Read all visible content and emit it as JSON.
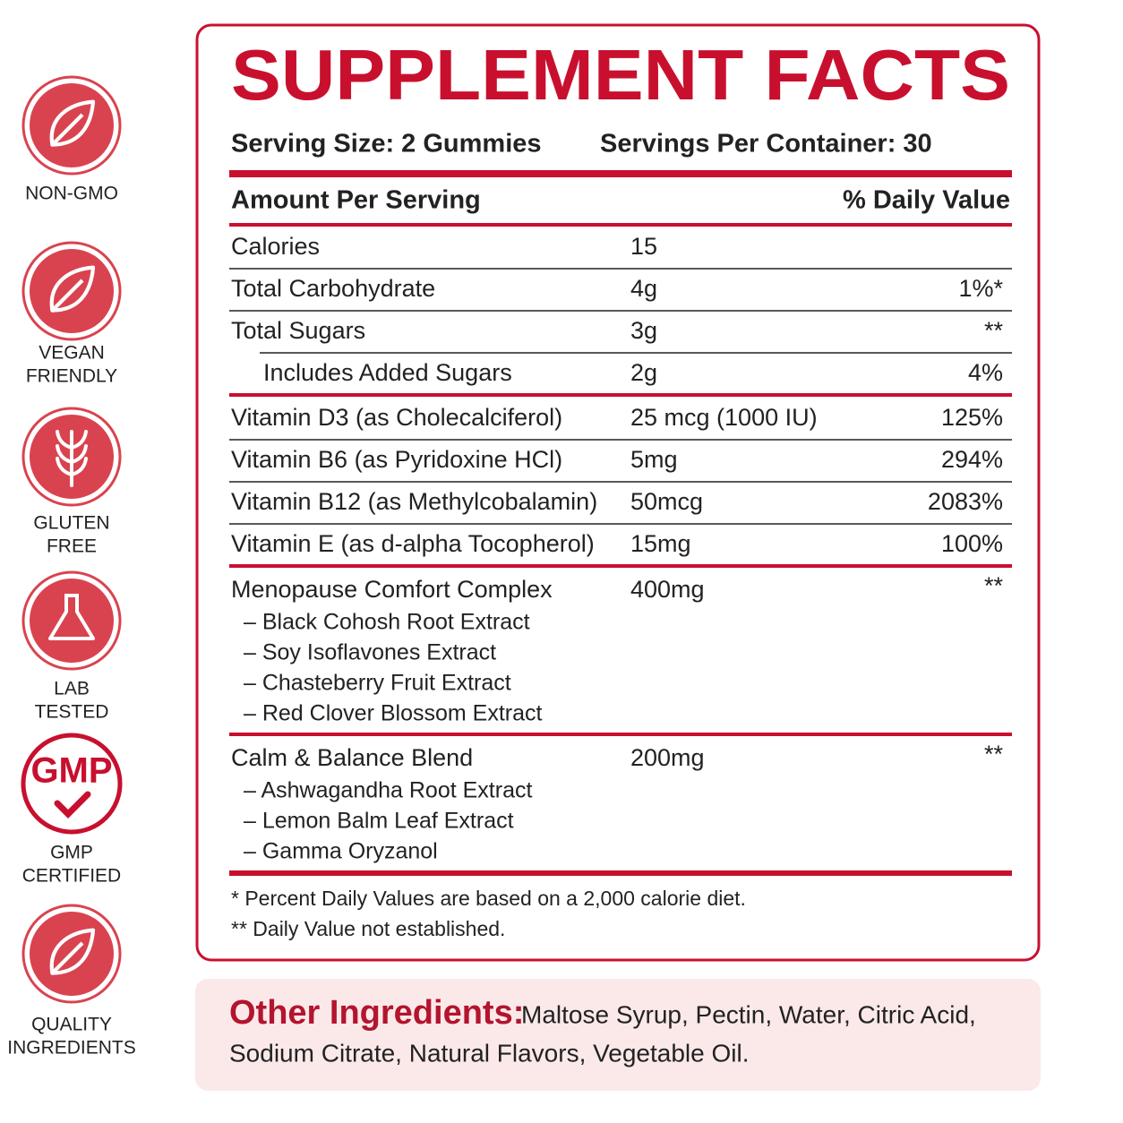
{
  "badges": [
    {
      "lines": [
        "NON-GMO"
      ]
    },
    {
      "lines": [
        "VEGAN",
        "FRIENDLY"
      ]
    },
    {
      "lines": [
        "GLUTEN",
        "FREE"
      ]
    },
    {
      "lines": [
        "LAB",
        "TESTED"
      ]
    },
    {
      "icon_text": "GMP",
      "lines": [
        "GMP",
        "CERTIFIED"
      ]
    },
    {
      "lines": [
        "QUALITY",
        "INGREDIENTS"
      ]
    }
  ],
  "facts": {
    "title": "SUPPLEMENT FACTS",
    "serving_size": "Serving Size: 2 Gummies",
    "servings_per_container": "Servings Per Container: 30",
    "header": {
      "amount": "Amount Per Serving",
      "dv": "% Daily Value"
    },
    "sections": [
      [
        {
          "name": "Calories",
          "amount": "15"
        },
        {
          "name": "Total Carbohydrate",
          "amount": "4g",
          "dv": "1%*"
        },
        {
          "name": "Total Sugars",
          "amount": "3g",
          "dv": "**"
        },
        {
          "name": "Includes Added Sugars",
          "amount": "2g",
          "dv": "4%",
          "indent": true
        }
      ],
      [
        {
          "name": "Vitamin D3 (as Cholecalciferol)",
          "amount": "25 mcg (1000 IU)",
          "dv": "125%"
        },
        {
          "name": "Vitamin B6 (as Pyridoxine HCl)",
          "amount": "5mg",
          "dv": "294%"
        },
        {
          "name": "Vitamin B12 (as Methylcobalamin)",
          "amount": "50mcg",
          "dv": "2083%"
        },
        {
          "name": "Vitamin E (as d-alpha Tocopherol)",
          "amount": "15mg",
          "dv": "100%"
        }
      ],
      [
        {
          "name": "Menopause Comfort Complex",
          "amount": "400mg",
          "dv": "**",
          "ingredients": [
            "– Black Cohosh Root Extract",
            "– Soy Isoflavones Extract",
            "– Chasteberry Fruit Extract",
            "– Red Clover Blossom Extract"
          ]
        }
      ],
      [
        {
          "name": "Calm & Balance Blend",
          "amount": "200mg",
          "dv": "**",
          "ingredients": [
            "– Ashwagandha Root Extract",
            "– Lemon Balm Leaf Extract",
            "– Gamma Oryzanol"
          ]
        }
      ]
    ],
    "footnotes": [
      "* Percent Daily Values are based on a 2,000 calorie diet.",
      "** Daily Value not established."
    ]
  },
  "other_ingredients": {
    "label": "Other Ingredients:",
    "lines": [
      "Maltose Syrup, Pectin, Water, Citric Acid,",
      "Sodium Citrate, Natural Flavors, Vegetable Oil."
    ]
  }
}
